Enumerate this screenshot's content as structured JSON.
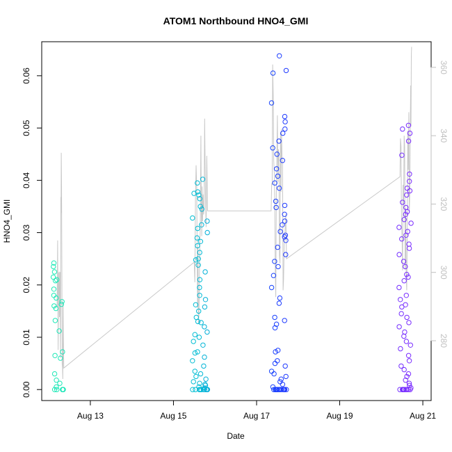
{
  "chart_data": {
    "type": "scatter",
    "title": "ATOM1 Northbound HNO4_GMI",
    "xlabel": "Date",
    "ylabel": "HNO4_GMI",
    "y2label": "",
    "x_ticks": [
      "Aug 13",
      "Aug 15",
      "Aug 17",
      "Aug 19",
      "Aug 21"
    ],
    "x_tick_values": [
      13,
      15,
      17,
      19,
      21
    ],
    "xlim": [
      11.83,
      21.2
    ],
    "y_ticks": [
      "0.00",
      "0.01",
      "0.02",
      "0.03",
      "0.04",
      "0.05",
      "0.06"
    ],
    "y_tick_values": [
      0.0,
      0.01,
      0.02,
      0.03,
      0.04,
      0.05,
      0.06
    ],
    "ylim": [
      -0.0021,
      0.0665
    ],
    "y2_ticks": [
      "280",
      "300",
      "320",
      "340",
      "360"
    ],
    "y2_tick_values": [
      280,
      300,
      320,
      340,
      360
    ],
    "y2lim": [
      262.5,
      367.5
    ],
    "grid": false,
    "series_point_color_scale": "cyan-to-blue-to-violet by time",
    "line_color": "#c8c8c8",
    "point_color_stops": [
      "#1de9b6",
      "#00bcd4",
      "#1a3cff",
      "#7b2cff"
    ],
    "clusters": [
      {
        "x_range": [
          12.1,
          12.35
        ],
        "y_values": [
          0.0,
          0.0,
          0.0,
          0.0,
          0.0,
          0.0,
          0.0005,
          0.0012,
          0.0018,
          0.003,
          0.006,
          0.0065,
          0.0072,
          0.0112,
          0.0132,
          0.0155,
          0.016,
          0.0163,
          0.0168,
          0.0175,
          0.018,
          0.0192,
          0.0208,
          0.021,
          0.0215,
          0.0225,
          0.0235,
          0.0242
        ]
      },
      {
        "x_range": [
          15.45,
          15.82
        ],
        "y_values": [
          0.0,
          0.0,
          0.0,
          0.0,
          0.0,
          0.0,
          0.0,
          0.0,
          0.0,
          0.0,
          0.0,
          0.0,
          0.0003,
          0.0005,
          0.0008,
          0.001,
          0.0012,
          0.0015,
          0.002,
          0.0025,
          0.003,
          0.0035,
          0.0045,
          0.0055,
          0.0062,
          0.007,
          0.0072,
          0.0085,
          0.0092,
          0.01,
          0.0105,
          0.011,
          0.012,
          0.0128,
          0.013,
          0.0138,
          0.015,
          0.0158,
          0.0162,
          0.0172,
          0.018,
          0.0195,
          0.021,
          0.0225,
          0.0238,
          0.0248,
          0.025,
          0.0262,
          0.0275,
          0.0283,
          0.029,
          0.03,
          0.0308,
          0.0315,
          0.0322,
          0.0328,
          0.0345,
          0.035,
          0.0365,
          0.0372,
          0.0375,
          0.0378,
          0.0395,
          0.0402
        ]
      },
      {
        "x_range": [
          17.35,
          17.72
        ],
        "y_values": [
          0.0,
          0.0,
          0.0,
          0.0,
          0.0,
          0.0,
          0.0,
          0.0,
          0.0,
          0.0,
          0.0,
          0.0,
          0.0,
          0.0,
          0.0005,
          0.001,
          0.0015,
          0.002,
          0.0025,
          0.003,
          0.0035,
          0.0045,
          0.005,
          0.0055,
          0.0072,
          0.0075,
          0.0118,
          0.0125,
          0.0132,
          0.0138,
          0.0165,
          0.0175,
          0.0195,
          0.0218,
          0.0235,
          0.0245,
          0.0258,
          0.0272,
          0.0285,
          0.0292,
          0.0295,
          0.0302,
          0.0315,
          0.0322,
          0.0335,
          0.0348,
          0.0352,
          0.036,
          0.0385,
          0.0395,
          0.0408,
          0.0422,
          0.0438,
          0.045,
          0.0462,
          0.0475,
          0.049,
          0.0498,
          0.0512,
          0.0522,
          0.0548,
          0.0605,
          0.061,
          0.0638
        ]
      },
      {
        "x_range": [
          20.42,
          20.72
        ],
        "y_values": [
          0.0,
          0.0,
          0.0,
          0.0,
          0.0,
          0.0,
          0.0,
          0.0,
          0.0,
          0.0,
          0.0,
          0.0,
          0.0003,
          0.0008,
          0.0012,
          0.0018,
          0.0025,
          0.003,
          0.0038,
          0.0045,
          0.0055,
          0.0065,
          0.0078,
          0.0085,
          0.0092,
          0.0102,
          0.011,
          0.012,
          0.0128,
          0.0138,
          0.0145,
          0.0158,
          0.0162,
          0.0172,
          0.018,
          0.0195,
          0.0208,
          0.0215,
          0.022,
          0.0235,
          0.0245,
          0.0258,
          0.027,
          0.0278,
          0.0288,
          0.0295,
          0.0302,
          0.031,
          0.0318,
          0.0325,
          0.0335,
          0.034,
          0.0348,
          0.0358,
          0.0372,
          0.038,
          0.0385,
          0.0398,
          0.0412,
          0.0448,
          0.0475,
          0.049,
          0.0498,
          0.0505
        ]
      }
    ],
    "y2_line": {
      "description_points_x": [
        12.2,
        12.25,
        12.28,
        12.3,
        12.33,
        12.36,
        15.5,
        15.56,
        15.6,
        15.66,
        15.7,
        15.75,
        15.82,
        16.6,
        17.35,
        17.4,
        17.45,
        17.5,
        17.55,
        17.6,
        17.65,
        17.72,
        20.45,
        20.5,
        20.55,
        20.6,
        20.65,
        20.7,
        20.73
      ],
      "description_points_y2": [
        290,
        300,
        275,
        335,
        272,
        272,
        303,
        325,
        285,
        340,
        315,
        345,
        318,
        318,
        318,
        352,
        300,
        346,
        305,
        342,
        298,
        304,
        328,
        310,
        340,
        300,
        330,
        345,
        366
      ]
    }
  }
}
